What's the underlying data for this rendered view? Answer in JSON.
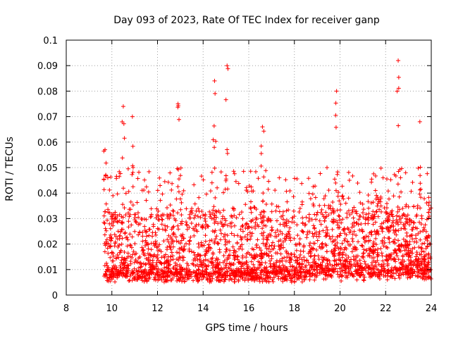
{
  "chart_data": {
    "type": "scatter",
    "title": "Day 093 of 2023, Rate Of TEC Index for receiver ganp",
    "xlabel": "GPS time / hours",
    "ylabel": "ROTI / TECUs",
    "xlim": [
      8,
      24
    ],
    "ylim": [
      0,
      0.1
    ],
    "x_ticks": [
      "8",
      "10",
      "12",
      "14",
      "16",
      "18",
      "20",
      "22",
      "24"
    ],
    "y_ticks": [
      "0",
      "0.01",
      "0.02",
      "0.03",
      "0.04",
      "0.05",
      "0.06",
      "0.07",
      "0.08",
      "0.09",
      "0.1"
    ],
    "grid": true,
    "marker": "+",
    "marker_color": "#ff0000",
    "x_range_of_data": [
      9.65,
      24.0
    ],
    "typical_band": [
      0.007,
      0.03
    ],
    "notable_points": [
      {
        "x": 9.7,
        "y": 0.057
      },
      {
        "x": 10.5,
        "y": 0.074
      },
      {
        "x": 10.9,
        "y": 0.07
      },
      {
        "x": 12.9,
        "y": 0.075
      },
      {
        "x": 14.5,
        "y": 0.084
      },
      {
        "x": 15.05,
        "y": 0.09
      },
      {
        "x": 16.6,
        "y": 0.066
      },
      {
        "x": 19.85,
        "y": 0.08
      },
      {
        "x": 22.55,
        "y": 0.092
      },
      {
        "x": 23.5,
        "y": 0.068
      }
    ]
  }
}
